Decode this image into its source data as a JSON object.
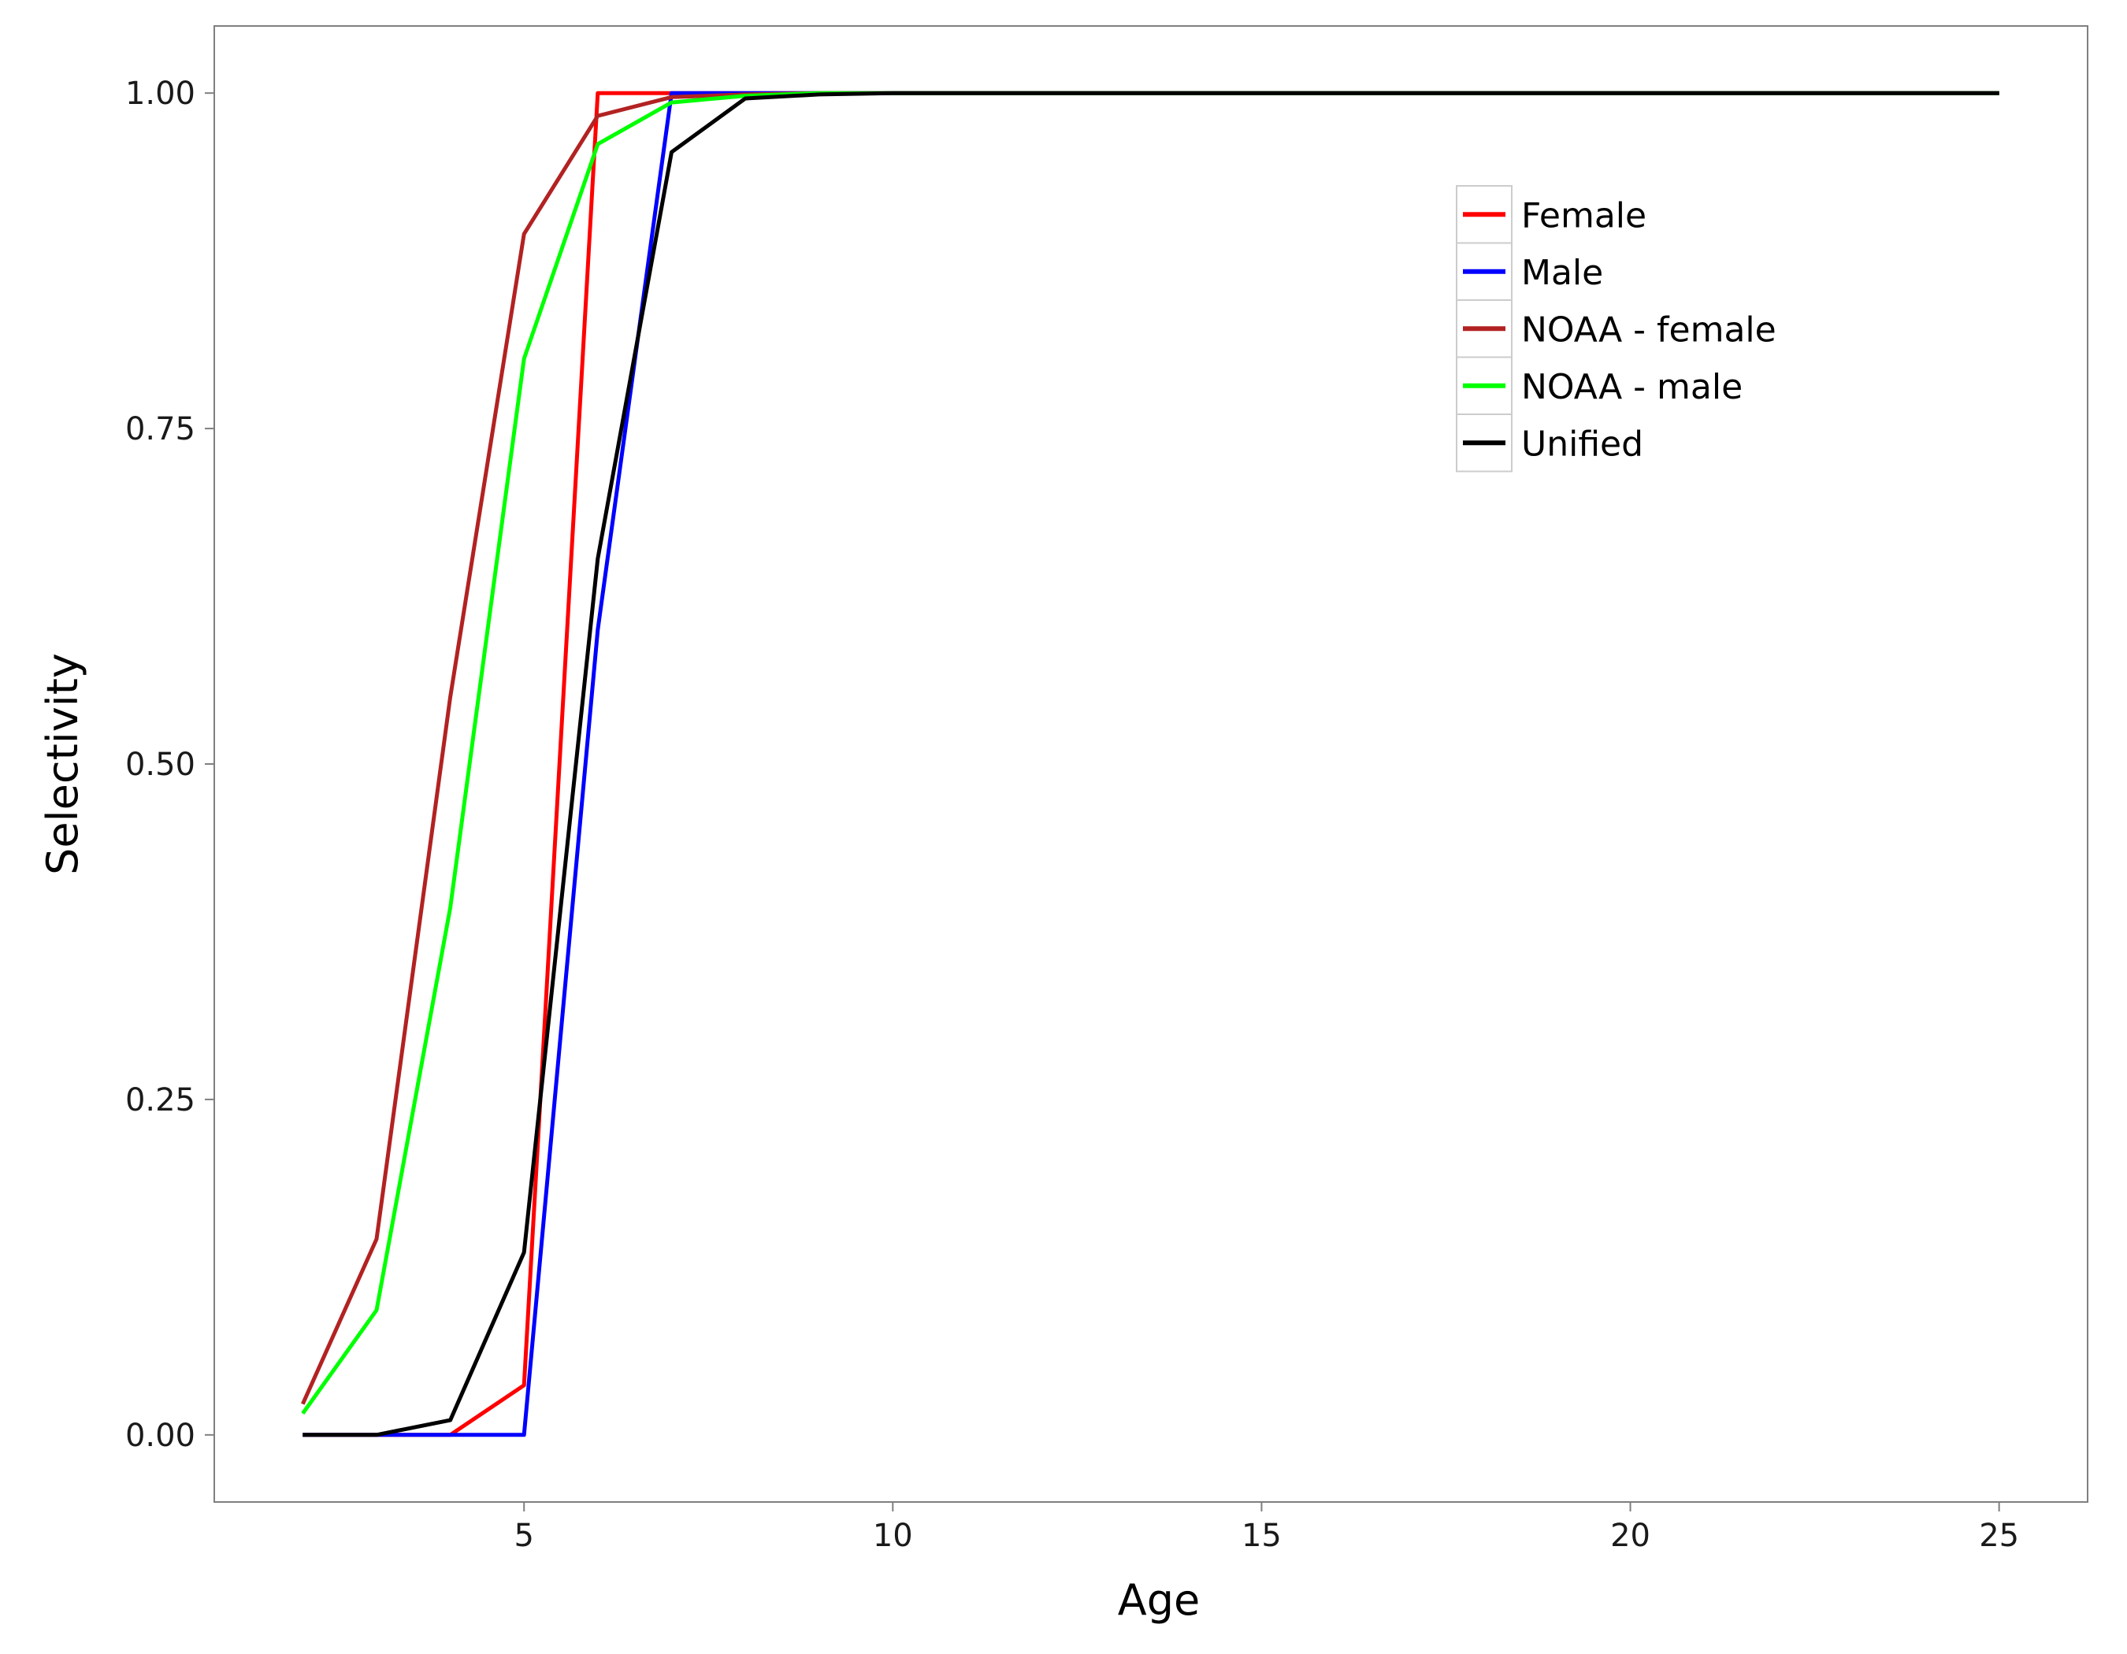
{
  "chart_data": {
    "type": "line",
    "title": "",
    "xlabel": "Age",
    "ylabel": "Selectivity",
    "xlim": [
      0.8,
      26.2
    ],
    "ylim": [
      -0.05,
      1.05
    ],
    "x_ticks": [
      5,
      10,
      15,
      20,
      25
    ],
    "x_tick_labels": [
      "5",
      "10",
      "15",
      "20",
      "25"
    ],
    "y_ticks": [
      0,
      0.25,
      0.5,
      0.75,
      1.0
    ],
    "y_tick_labels": [
      "0.00",
      "0.25",
      "0.50",
      "0.75",
      "1.00"
    ],
    "grid": false,
    "legend_position": "top-right",
    "x": [
      2,
      3,
      4,
      5,
      6,
      7,
      8,
      9,
      10,
      11,
      12,
      13,
      14,
      15,
      16,
      17,
      18,
      19,
      20,
      21,
      22,
      23,
      24,
      25
    ],
    "series": [
      {
        "name": "Female",
        "color": "#ff0000",
        "values": [
          0,
          0,
          0,
          0.037,
          1.0,
          1.0,
          1.0,
          1.0,
          1.0,
          1.0,
          1.0,
          1.0,
          1.0,
          1.0,
          1.0,
          1.0,
          1.0,
          1.0,
          1.0,
          1.0,
          1.0,
          1.0,
          1.0,
          1.0
        ]
      },
      {
        "name": "Male",
        "color": "#0000ff",
        "values": [
          0,
          0,
          0,
          0,
          0.6,
          1.0,
          1.0,
          1.0,
          1.0,
          1.0,
          1.0,
          1.0,
          1.0,
          1.0,
          1.0,
          1.0,
          1.0,
          1.0,
          1.0,
          1.0,
          1.0,
          1.0,
          1.0,
          1.0
        ]
      },
      {
        "name": "NOAA - female",
        "color": "#b22222",
        "values": [
          0.023,
          0.146,
          0.55,
          0.895,
          0.983,
          0.997,
          0.999,
          1.0,
          1.0,
          1.0,
          1.0,
          1.0,
          1.0,
          1.0,
          1.0,
          1.0,
          1.0,
          1.0,
          1.0,
          1.0,
          1.0,
          1.0,
          1.0,
          1.0
        ]
      },
      {
        "name": "NOAA - male",
        "color": "#00ff00",
        "values": [
          0.016,
          0.093,
          0.393,
          0.802,
          0.962,
          0.993,
          0.998,
          1.0,
          1.0,
          1.0,
          1.0,
          1.0,
          1.0,
          1.0,
          1.0,
          1.0,
          1.0,
          1.0,
          1.0,
          1.0,
          1.0,
          1.0,
          1.0,
          1.0
        ]
      },
      {
        "name": "Unified",
        "color": "#000000",
        "values": [
          0,
          0,
          0.011,
          0.136,
          0.653,
          0.956,
          0.996,
          0.999,
          1.0,
          1.0,
          1.0,
          1.0,
          1.0,
          1.0,
          1.0,
          1.0,
          1.0,
          1.0,
          1.0,
          1.0,
          1.0,
          1.0,
          1.0,
          1.0
        ]
      }
    ]
  }
}
